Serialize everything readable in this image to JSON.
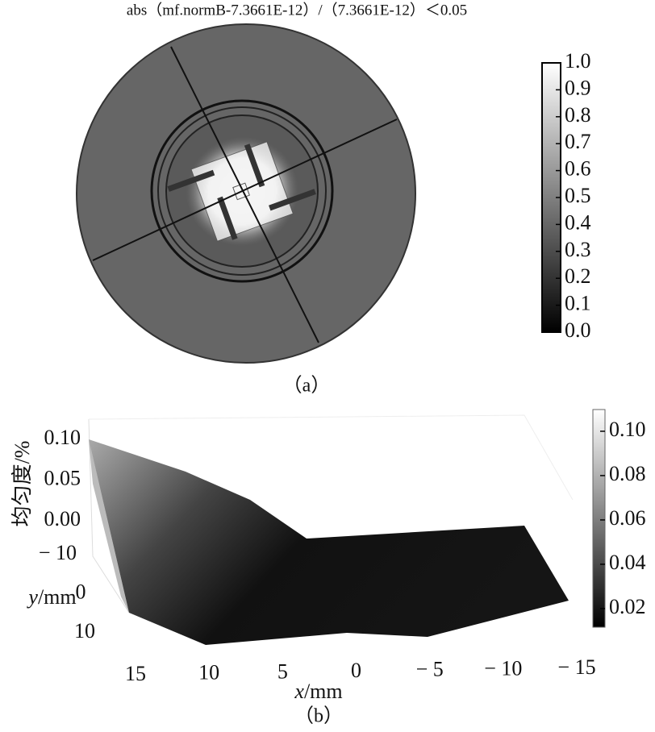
{
  "panel_a": {
    "title": "abs（mf.normB-7.3661E-12）/（7.3661E-12）＜0.05",
    "colorbar": {
      "lim": [
        0,
        1
      ],
      "ticks": [
        {
          "value": 0,
          "label": "0.0"
        },
        0.1,
        0.2,
        0.3,
        0.4,
        0.5,
        0.6,
        0.7,
        0.8,
        0.9,
        {
          "value": 1,
          "label": "1.0"
        }
      ]
    },
    "caption": "（a）"
  },
  "panel_b": {
    "z_label": "均匀度/%",
    "zlim": [
      0,
      0.1
    ],
    "zticks": [
      {
        "value": 0,
        "label": "0.00"
      },
      0.05,
      {
        "value": 0.1,
        "label": "0.10"
      }
    ],
    "y_label": {
      "var": "y",
      "unit": "/mm"
    },
    "ylim": [
      -10,
      10
    ],
    "yticks": [
      {
        "value": -10,
        "label": "− 10"
      },
      0,
      10
    ],
    "x_label": {
      "var": "x",
      "unit": "/mm"
    },
    "xlim": [
      -15,
      15
    ],
    "xticks": [
      15,
      10,
      5,
      0,
      {
        "value": -5,
        "label": "− 5"
      },
      {
        "value": -10,
        "label": "− 10"
      },
      {
        "value": -15,
        "label": "− 15"
      }
    ],
    "colorbar": {
      "lim": [
        0.0116,
        0.1098
      ],
      "ticks": [
        0.02,
        0.04,
        0.06,
        0.08,
        {
          "value": 0.1,
          "label": "0.10"
        }
      ]
    },
    "caption": "（b）"
  }
}
